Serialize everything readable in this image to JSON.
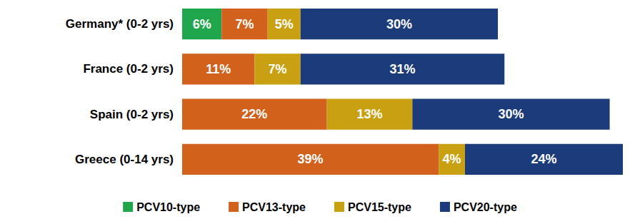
{
  "chart_data": {
    "type": "bar",
    "orientation": "horizontal",
    "stacked": true,
    "data_labels": true,
    "tick_labels": "y",
    "grid": false,
    "legend": "bottom",
    "categories": [
      "Germany* (0-2 yrs)",
      "France (0-2 yrs)",
      "Spain (0-2 yrs)",
      "Greece (0-14 yrs)"
    ],
    "xlim": [
      0,
      67
    ],
    "series": [
      {
        "name": "PCV10-type",
        "color": "#1fa54b",
        "values": [
          6,
          null,
          null,
          null
        ],
        "value_labels": [
          "6%",
          null,
          null,
          null
        ]
      },
      {
        "name": "PCV13-type",
        "color": "#d2611d",
        "values": [
          7,
          11,
          22,
          39
        ],
        "value_labels": [
          "7%",
          "11%",
          "22%",
          "39%"
        ]
      },
      {
        "name": "PCV15-type",
        "color": "#c9a012",
        "values": [
          5,
          7,
          13,
          4
        ],
        "value_labels": [
          "5%",
          "7%",
          "13%",
          "4%"
        ]
      },
      {
        "name": "PCV20-type",
        "color": "#1c3b7b",
        "values": [
          30,
          31,
          30,
          24
        ],
        "value_labels": [
          "30%",
          "31%",
          "30%",
          "24%"
        ]
      }
    ]
  }
}
